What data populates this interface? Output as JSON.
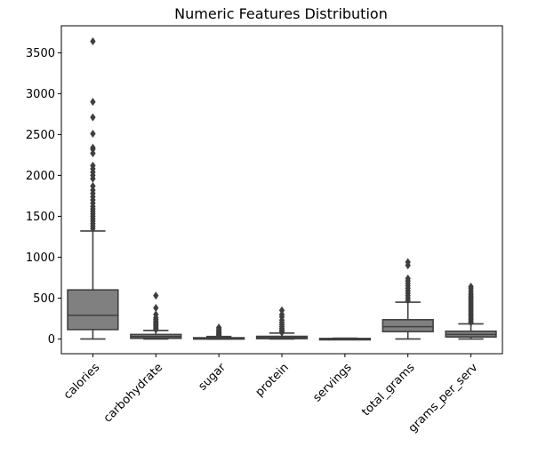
{
  "chart_data": {
    "type": "box",
    "title": "Numeric Features Distribution",
    "xlabel": "",
    "ylabel": "",
    "ylim": [
      -180,
      3830
    ],
    "yticks": [
      0,
      500,
      1000,
      1500,
      2000,
      2500,
      3000,
      3500
    ],
    "ytick_labels": [
      "0",
      "500",
      "1000",
      "1500",
      "2000",
      "2500",
      "3000",
      "3500"
    ],
    "grid": false,
    "legend": "none",
    "colors": {
      "box_fill": "#808080",
      "box_edge": "#3f3f3f",
      "axes": "#000000",
      "background": "#ffffff"
    },
    "categories": [
      "calories",
      "carbohydrate",
      "sugar",
      "protein",
      "servings",
      "total_grams",
      "grams_per_serv"
    ],
    "boxes": [
      {
        "name": "calories",
        "whislo": 0,
        "q1": 115,
        "med": 290,
        "q3": 600,
        "whishi": 1320,
        "fliers": [
          1350,
          1380,
          1410,
          1440,
          1470,
          1500,
          1530,
          1560,
          1590,
          1620,
          1660,
          1700,
          1740,
          1780,
          1820,
          1870,
          1960,
          2000,
          2040,
          2080,
          2120,
          2270,
          2320,
          2340,
          2510,
          2710,
          2900,
          3640
        ]
      },
      {
        "name": "carbohydrate",
        "whislo": 0,
        "q1": 8,
        "med": 28,
        "q3": 55,
        "whishi": 105,
        "fliers": [
          115,
          130,
          145,
          160,
          175,
          190,
          205,
          220,
          240,
          260,
          300,
          380,
          530
        ]
      },
      {
        "name": "sugar",
        "whislo": 0,
        "q1": 1,
        "med": 5,
        "q3": 15,
        "whishi": 30,
        "fliers": [
          36,
          44,
          52,
          62,
          72,
          82,
          95,
          110,
          125,
          140
        ]
      },
      {
        "name": "protein",
        "whislo": 0,
        "q1": 4,
        "med": 15,
        "q3": 32,
        "whishi": 72,
        "fliers": [
          80,
          95,
          110,
          130,
          150,
          175,
          200,
          230,
          270,
          300,
          350
        ]
      },
      {
        "name": "servings",
        "whislo": 1,
        "q1": 2,
        "med": 4,
        "q3": 6,
        "whishi": 10,
        "fliers": []
      },
      {
        "name": "total_grams",
        "whislo": 0,
        "q1": 90,
        "med": 150,
        "q3": 235,
        "whishi": 450,
        "fliers": [
          470,
          500,
          530,
          560,
          590,
          620,
          650,
          680,
          710,
          740,
          900,
          940
        ]
      },
      {
        "name": "grams_per_serv",
        "whislo": 0,
        "q1": 25,
        "med": 55,
        "q3": 95,
        "whishi": 185,
        "fliers": [
          200,
          220,
          240,
          260,
          280,
          300,
          320,
          340,
          360,
          380,
          400,
          420,
          440,
          460,
          480,
          500,
          520,
          540,
          560,
          590,
          620,
          640
        ]
      }
    ]
  }
}
